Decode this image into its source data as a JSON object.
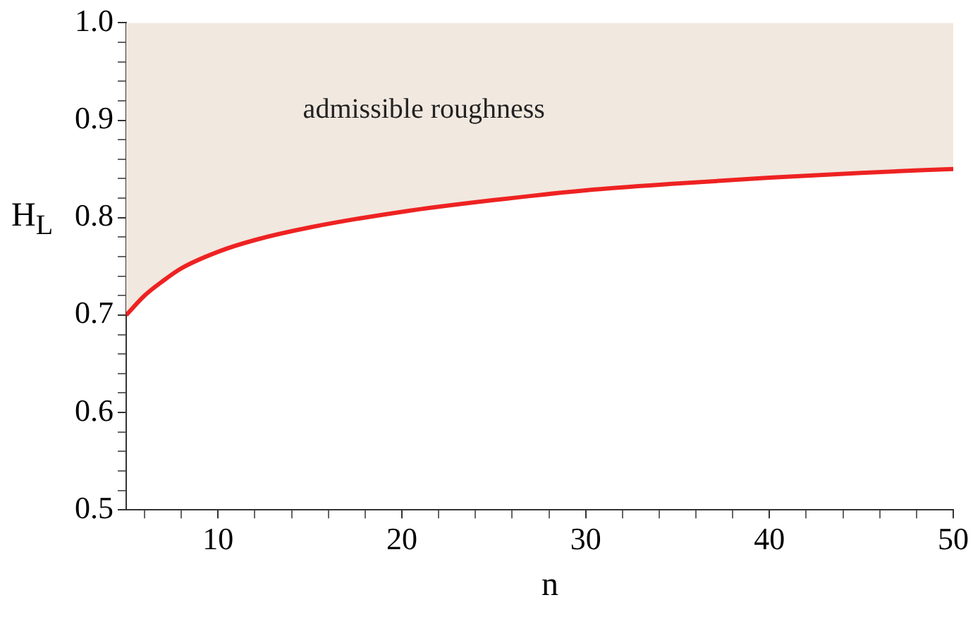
{
  "chart_data": {
    "type": "line",
    "xlabel": "n",
    "ylabel": "H$_{L}$",
    "annotations": [
      "admissible roughness"
    ],
    "x": [
      5,
      6,
      7,
      8,
      10,
      12,
      15,
      20,
      25,
      30,
      35,
      40,
      45,
      50
    ],
    "series": [
      {
        "color": "#ee2222",
        "values": [
          0.7,
          0.72,
          0.735,
          0.748,
          0.765,
          0.777,
          0.79,
          0.806,
          0.818,
          0.828,
          0.835,
          0.841,
          0.846,
          0.85
        ],
        "lower": [
          0.7,
          0.72,
          0.735,
          0.748,
          0.765,
          0.777,
          0.79,
          0.806,
          0.818,
          0.828,
          0.835,
          0.841,
          0.846,
          0.85
        ],
        "upper": [
          1,
          1,
          1,
          1,
          1,
          1,
          1,
          1,
          1,
          1,
          1,
          1,
          1,
          1
        ]
      }
    ],
    "xlim": [
      5,
      50
    ],
    "ylim": [
      0.5,
      1.0
    ],
    "xticks": [
      {
        "value": 6,
        "label": null
      },
      {
        "value": 8,
        "label": null
      },
      10,
      {
        "value": 12,
        "label": null
      },
      {
        "value": 14,
        "label": null
      },
      {
        "value": 16,
        "label": null
      },
      {
        "value": 18,
        "label": null
      },
      20,
      {
        "value": 22,
        "label": null
      },
      {
        "value": 24,
        "label": null
      },
      {
        "value": 26,
        "label": null
      },
      {
        "value": 28,
        "label": null
      },
      30,
      {
        "value": 32,
        "label": null
      },
      {
        "value": 34,
        "label": null
      },
      {
        "value": 36,
        "label": null
      },
      {
        "value": 38,
        "label": null
      },
      40,
      {
        "value": 42,
        "label": null
      },
      {
        "value": 44,
        "label": null
      },
      {
        "value": 46,
        "label": null
      },
      {
        "value": 48,
        "label": null
      },
      50
    ],
    "yticks": [
      0.5,
      {
        "value": 0.52,
        "label": null
      },
      {
        "value": 0.54,
        "label": null
      },
      {
        "value": 0.56,
        "label": null
      },
      {
        "value": 0.58,
        "label": null
      },
      0.6,
      {
        "value": 0.62,
        "label": null
      },
      {
        "value": 0.64,
        "label": null
      },
      {
        "value": 0.66,
        "label": null
      },
      {
        "value": 0.68,
        "label": null
      },
      0.7,
      {
        "value": 0.72,
        "label": null
      },
      {
        "value": 0.74,
        "label": null
      },
      {
        "value": 0.76,
        "label": null
      },
      {
        "value": 0.78,
        "label": null
      },
      0.8,
      {
        "value": 0.82,
        "label": null
      },
      {
        "value": 0.84,
        "label": null
      },
      {
        "value": 0.86,
        "label": null
      },
      {
        "value": 0.88,
        "label": null
      },
      0.9,
      {
        "value": 0.92,
        "label": null
      },
      {
        "value": 0.94,
        "label": null
      },
      {
        "value": 0.96,
        "label": null
      },
      {
        "value": 0.98,
        "label": null
      },
      "1.0"
    ],
    "grid": false,
    "legend": false,
    "line_style": "solid",
    "marker": "none"
  }
}
